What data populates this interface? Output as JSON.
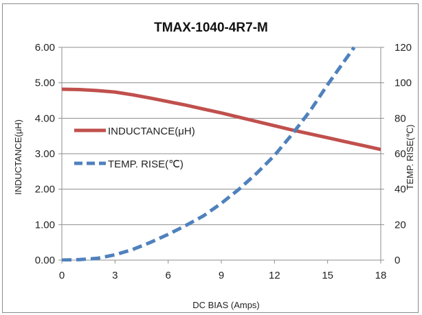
{
  "chart_data": {
    "type": "line",
    "title": "TMAX-1040-4R7-M",
    "xlabel": "DC BIAS  (Amps)",
    "ylabel_left": "INDUCTANCE(μH)",
    "ylabel_right": "TEMP.  RISE(℃)",
    "xlim": [
      0,
      18
    ],
    "ylim_left": [
      0,
      6
    ],
    "ylim_right": [
      0,
      120
    ],
    "x_ticks": [
      "0",
      "3",
      "6",
      "9",
      "12",
      "15",
      "18"
    ],
    "y_left_ticks": [
      "0.00",
      "1.00",
      "2.00",
      "3.00",
      "4.00",
      "5.00",
      "6.00"
    ],
    "y_right_ticks": [
      "0",
      "20",
      "40",
      "60",
      "80",
      "100",
      "120"
    ],
    "grid": "horizontal",
    "legend_position": "left-middle",
    "series": [
      {
        "name": "INDUCTANCE(μH)",
        "axis": "left",
        "style": "solid",
        "color": "#c0504d",
        "x": [
          0,
          1,
          2,
          3,
          4,
          5,
          6,
          7,
          8,
          9,
          10,
          11,
          12,
          13,
          14,
          15,
          16,
          17,
          18
        ],
        "values": [
          4.82,
          4.81,
          4.78,
          4.74,
          4.66,
          4.57,
          4.47,
          4.37,
          4.26,
          4.15,
          4.03,
          3.91,
          3.79,
          3.67,
          3.56,
          3.45,
          3.34,
          3.23,
          3.12
        ]
      },
      {
        "name": "TEMP. RISE(℃)",
        "axis": "right",
        "style": "dashed",
        "color": "#4f81bd",
        "x": [
          0,
          1,
          2,
          3,
          4,
          5,
          6,
          7,
          8,
          9,
          10,
          11,
          12,
          13,
          14,
          15,
          16,
          16.5
        ],
        "values": [
          0,
          0.3,
          1,
          3,
          6,
          10,
          14.5,
          19.5,
          25,
          32,
          40,
          49,
          59,
          71,
          84,
          99,
          113,
          120
        ]
      }
    ]
  }
}
